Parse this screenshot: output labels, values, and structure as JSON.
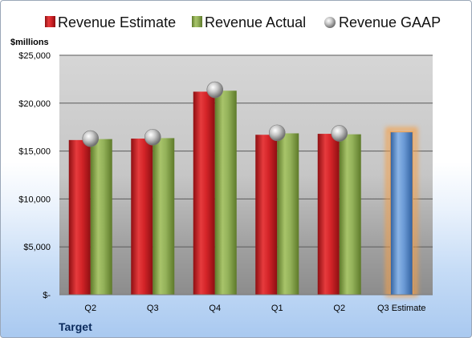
{
  "chart_data": {
    "type": "bar",
    "company": "Target",
    "unit_label": "$millions",
    "categories": [
      "Q2",
      "Q3",
      "Q4",
      "Q1",
      "Q2",
      "Q3 Estimate"
    ],
    "series": [
      {
        "name": "Revenue Estimate",
        "type": "bar",
        "color": "#c0161b",
        "values": [
          16150,
          16300,
          21200,
          16700,
          16800,
          null
        ]
      },
      {
        "name": "Revenue Actual",
        "type": "bar",
        "color": "#88a84a",
        "values": [
          16250,
          16350,
          21300,
          16850,
          16750,
          null
        ]
      },
      {
        "name": "Revenue GAAP",
        "type": "scatter",
        "color": "#b8b8b8",
        "values": [
          16300,
          16450,
          21400,
          16900,
          16850,
          null
        ]
      }
    ],
    "forecast": {
      "category_index": 5,
      "value": 17000,
      "color": "#4f86cc",
      "highlight": "#f5a04a"
    },
    "yticks": [
      0,
      5000,
      10000,
      15000,
      20000,
      25000
    ],
    "ytick_labels": [
      "$-",
      "$5,000",
      "$10,000",
      "$15,000",
      "$20,000",
      "$25,000"
    ],
    "ylim": [
      0,
      25000
    ],
    "grid": true,
    "legend_position": "top"
  }
}
